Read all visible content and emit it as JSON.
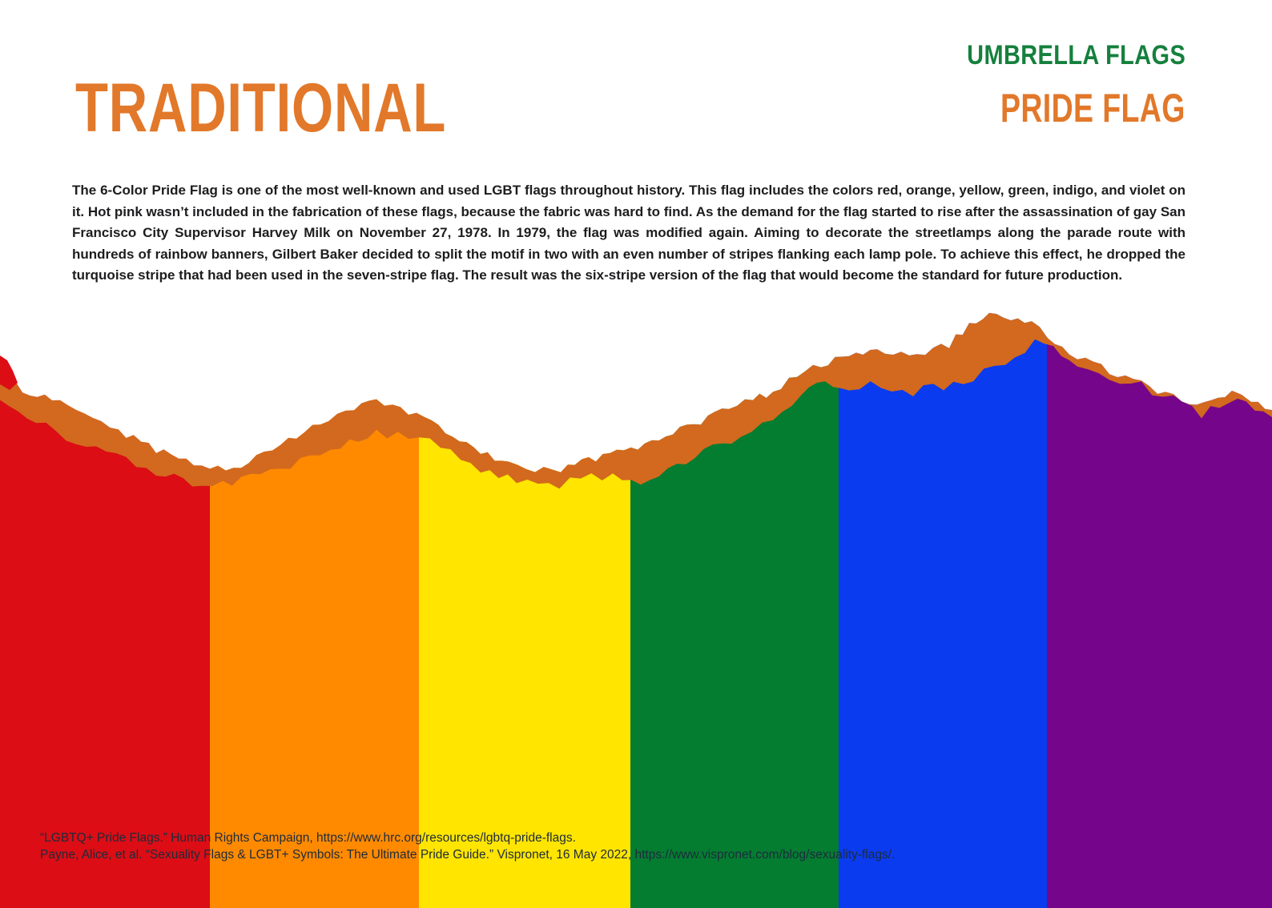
{
  "header": {
    "collection": "UMBRELLA FLAGS",
    "title": "TRADITIONAL",
    "subtitle": "PRIDE FLAG"
  },
  "body": {
    "paragraph": "The 6-Color Pride Flag is one of the most well-known and used LGBT flags throughout history. This flag includes the colors red, orange, yellow, green, indigo, and violet on it.  Hot pink wasn’t included in the fabrication of these flags, because the fabric was hard to find. As the demand for the flag started to rise after the assassination of gay San Francisco City Supervisor Harvey Milk on November 27, 1978.  In 1979, the flag was modified again. Aiming to decorate the streetlamps along the parade route with hundreds of rainbow banners, Gilbert Baker decided to split the motif in two with an even number of stripes flanking each lamp pole. To achieve this effect, he dropped the turquoise stripe that had been used in the seven-stripe flag. The result was the six-stripe version of the flag that would become the standard for future production."
  },
  "flag": {
    "stripe_names": [
      "red",
      "orange",
      "yellow",
      "green",
      "blue",
      "purple"
    ],
    "stripe_colors": [
      "#DC0D15",
      "#FF8A00",
      "#FFE500",
      "#047D31",
      "#0A3BEF",
      "#75058A"
    ],
    "stripe_bounds": [
      0,
      262,
      523,
      787,
      1047,
      1307,
      1588
    ],
    "torn_edge_color": "#D2691E"
  },
  "citations": [
    "“LGBTQ+ Pride Flags.” Human Rights Campaign, https://www.hrc.org/resources/lgbtq-pride-flags.",
    "Payne, Alice, et al. “Sexuality Flags & LGBT+ Symbols: The Ultimate Pride Guide.” Vispronet, 16 May 2022, https://www.vispronet.com/blog/sexuality-flags/."
  ],
  "colors": {
    "background": "#FFFFFF",
    "title_orange": "#E2782A",
    "collection_green": "#15803D",
    "body_text": "#1D1D1F",
    "citation_text": "#1E2B3C"
  }
}
